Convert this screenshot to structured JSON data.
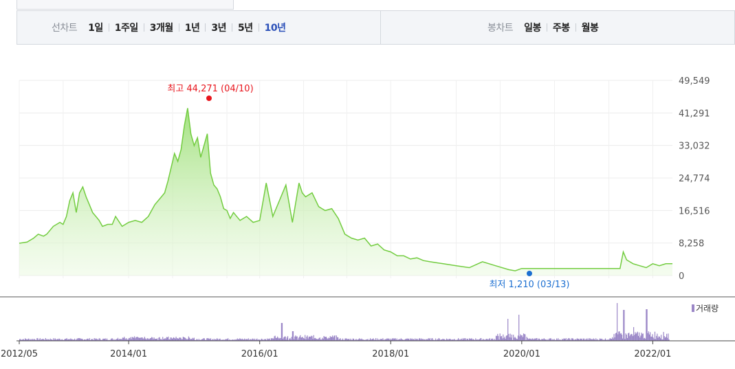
{
  "toolbar": {
    "line_chart_label": "선차트",
    "periods": [
      {
        "label": "1일",
        "active": false
      },
      {
        "label": "1주일",
        "active": false
      },
      {
        "label": "3개월",
        "active": false
      },
      {
        "label": "1년",
        "active": false
      },
      {
        "label": "3년",
        "active": false
      },
      {
        "label": "5년",
        "active": false
      },
      {
        "label": "10년",
        "active": true
      }
    ],
    "candle_chart_label": "봉차트",
    "candle_types": [
      {
        "label": "일봉"
      },
      {
        "label": "주봉"
      },
      {
        "label": "월봉"
      }
    ]
  },
  "chart_data": {
    "type": "area",
    "title": "",
    "xlabel": "",
    "ylabel": "",
    "ylim": [
      0,
      49549
    ],
    "y_ticks": [
      "49,549",
      "41,291",
      "33,032",
      "24,774",
      "16,516",
      "8,258",
      "0"
    ],
    "y_tick_values": [
      49549,
      41291,
      33032,
      24774,
      16516,
      8258,
      0
    ],
    "x_ticks": [
      "2012/05",
      "2014/01",
      "2016/01",
      "2018/01",
      "2020/01",
      "2022/01"
    ],
    "x_tick_values": [
      2012.33,
      2014.0,
      2016.0,
      2018.0,
      2020.0,
      2022.0
    ],
    "xlim": [
      2012.33,
      2022.3
    ],
    "grid": true,
    "max_annotation": {
      "text": "최고 44,271 (04/10)",
      "x": 2015.0,
      "y": 44271
    },
    "min_annotation": {
      "text": "최저 1,210 (03/13)",
      "x": 2020.0,
      "y": 1210
    },
    "colors": {
      "line": "#72cc3f",
      "fill_top": "#a6e57f",
      "max": "#e8141c",
      "min": "#1c6fd1",
      "volume": "#9b87c7"
    },
    "series": [
      {
        "x": [
          2012.33,
          2012.45,
          2012.55,
          2012.62,
          2012.7,
          2012.75,
          2012.85,
          2012.95,
          2013.0,
          2013.05,
          2013.1,
          2013.15,
          2013.2,
          2013.25,
          2013.3,
          2013.35,
          2013.4,
          2013.45,
          2013.5,
          2013.55,
          2013.6,
          2013.68,
          2013.75,
          2013.8,
          2013.9,
          2014.0,
          2014.1,
          2014.2,
          2014.3,
          2014.4,
          2014.5,
          2014.55,
          2014.6,
          2014.7,
          2014.75,
          2014.8,
          2014.85,
          2014.9,
          2014.95,
          2015.0,
          2015.05,
          2015.1,
          2015.15,
          2015.2,
          2015.25,
          2015.3,
          2015.35,
          2015.4,
          2015.45,
          2015.5,
          2015.55,
          2015.6,
          2015.7,
          2015.8,
          2015.9,
          2016.0,
          2016.1,
          2016.2,
          2016.3,
          2016.4,
          2016.5,
          2016.6,
          2016.65,
          2016.7,
          2016.8,
          2016.9,
          2016.95,
          2017.0,
          2017.1,
          2017.2,
          2017.3,
          2017.4,
          2017.5,
          2017.6,
          2017.7,
          2017.8,
          2017.9,
          2018.0,
          2018.1,
          2018.2,
          2018.3,
          2018.4,
          2018.5,
          2018.6,
          2018.8,
          2019.0,
          2019.2,
          2019.4,
          2019.6,
          2019.8,
          2019.9,
          2020.0,
          2020.2,
          2020.5,
          2020.8,
          2021.0,
          2021.3,
          2021.5,
          2021.55,
          2021.6,
          2021.7,
          2021.8,
          2021.9,
          2022.0,
          2022.1,
          2022.2,
          2022.3
        ],
        "y": [
          8200,
          8500,
          9500,
          10500,
          10000,
          10500,
          12500,
          13500,
          13000,
          15000,
          19000,
          21000,
          16000,
          21000,
          22500,
          20000,
          18000,
          16000,
          15000,
          14000,
          12500,
          13000,
          13000,
          15000,
          12500,
          13500,
          14000,
          13500,
          15000,
          18000,
          20000,
          21000,
          24000,
          31000,
          29000,
          32000,
          38000,
          42500,
          36000,
          33000,
          35000,
          30000,
          33000,
          36000,
          26000,
          23000,
          22000,
          20000,
          17000,
          16500,
          14500,
          16000,
          14000,
          15000,
          13500,
          14000,
          23500,
          15000,
          19000,
          23000,
          13500,
          23500,
          21000,
          20000,
          21000,
          17500,
          17000,
          16500,
          17000,
          14500,
          10500,
          9500,
          9000,
          9500,
          7500,
          8000,
          6500,
          6000,
          5000,
          5000,
          4200,
          4500,
          3800,
          3500,
          3000,
          2500,
          2000,
          3500,
          2500,
          1500,
          1210,
          1800,
          1800,
          1800,
          1800,
          1800,
          1800,
          1800,
          6000,
          4000,
          3000,
          2500,
          2000,
          3000,
          2500,
          3000,
          3000
        ]
      }
    ]
  },
  "volume_legend": "거래량"
}
